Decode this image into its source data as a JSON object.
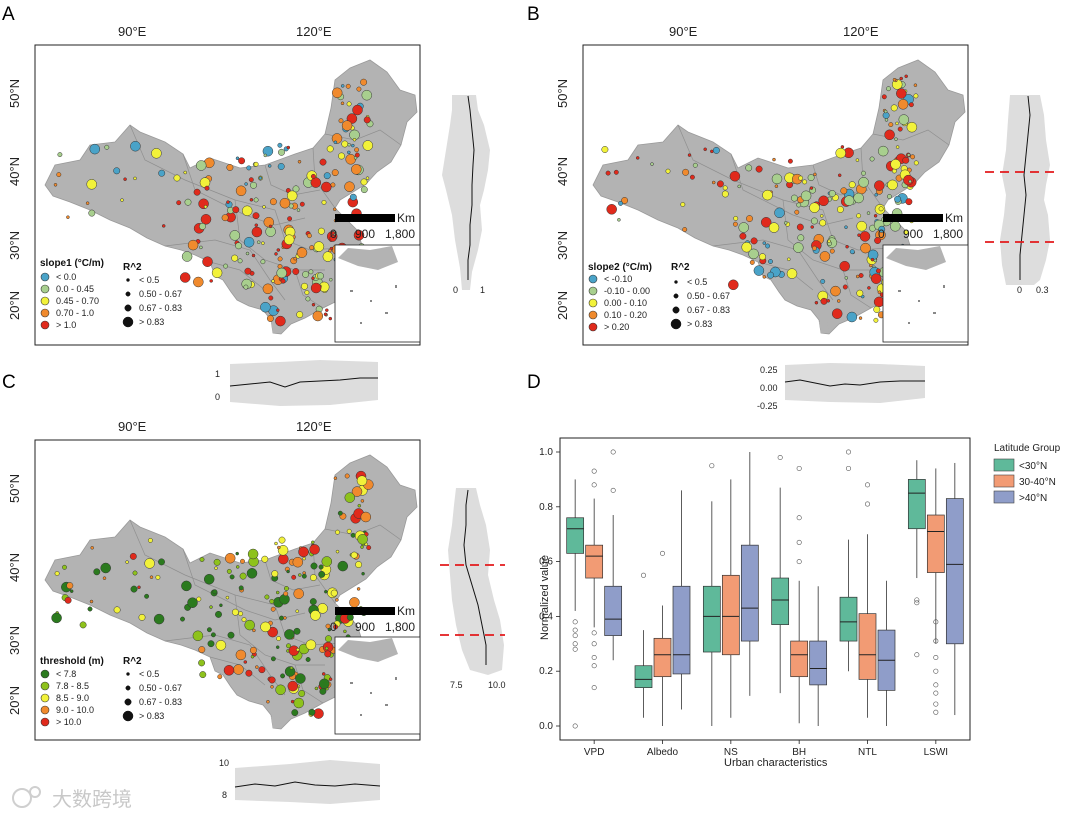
{
  "panels": {
    "A": {
      "letter": "A"
    },
    "B": {
      "letter": "B"
    },
    "C": {
      "letter": "C"
    },
    "D": {
      "letter": "D"
    }
  },
  "map": {
    "lon_labels": [
      "90°E",
      "120°E"
    ],
    "lat_labels": [
      "50°N",
      "40°N",
      "30°N",
      "20°N"
    ],
    "scalebar": {
      "unit": "Km",
      "ticks": [
        "0",
        "900",
        "1,800"
      ]
    },
    "colors": {
      "land": "#b3b3b3",
      "border": "#8f8f8f"
    }
  },
  "legends": {
    "A": {
      "title": "slope1 (°C/m)",
      "classes": [
        "< 0.0",
        "0.0 - 0.45",
        "0.45 - 0.70",
        "0.70 - 1.0",
        "> 1.0"
      ]
    },
    "B": {
      "title": "slope2 (°C/m)",
      "classes": [
        "< -0.10",
        "-0.10 - 0.00",
        "0.00 - 0.10",
        "0.10 - 0.20",
        "> 0.20"
      ]
    },
    "C": {
      "title": "threshold (m)",
      "classes": [
        "< 7.8",
        "7.8 - 8.5",
        "8.5 - 9.0",
        "9.0 - 10.0",
        "> 10.0"
      ]
    },
    "r2": {
      "title": "R^2",
      "classes": [
        "< 0.5",
        "0.50 - 0.67",
        "0.67 - 0.83",
        "> 0.83"
      ]
    },
    "colorsA": [
      "#4aa3c8",
      "#a8cf8e",
      "#f2f23a",
      "#f08a2d",
      "#e02a1c"
    ],
    "colorsB": [
      "#4aa3c8",
      "#a8cf8e",
      "#f2f23a",
      "#f08a2d",
      "#e02a1c"
    ],
    "colorsC": [
      "#2b7a1e",
      "#8ec21c",
      "#f2f23a",
      "#f08a2d",
      "#e02a1c"
    ]
  },
  "profiles": {
    "A_lat": {
      "ticks": [
        "0",
        "1"
      ]
    },
    "B_lat": {
      "ticks": [
        "0",
        "0.3"
      ]
    },
    "C_lat": {
      "ticks": [
        "7.5",
        "10.0"
      ]
    },
    "A_lon": {
      "ticks": [
        "1",
        "0"
      ]
    },
    "B_lon": {
      "ticks": [
        "0.25",
        "0.00",
        "-0.25"
      ]
    },
    "C_lon": {
      "ticks": [
        "10",
        "8"
      ]
    }
  },
  "watermark": "大数跨境",
  "chart_data": {
    "type": "box",
    "xlabel": "Urban characteristics",
    "ylabel": "Normalized value",
    "ylim": [
      0,
      1.0
    ],
    "yticks": [
      "0.0",
      "0.2",
      "0.4",
      "0.6",
      "0.8",
      "1.0"
    ],
    "categories": [
      "VPD",
      "Albedo",
      "NS",
      "BH",
      "NTL",
      "LSWI"
    ],
    "legend_title": "Latitude Group",
    "series": [
      {
        "name": "<30°N",
        "color": "#5fb99a",
        "boxes": [
          {
            "whislo": 0.42,
            "q1": 0.63,
            "med": 0.72,
            "q3": 0.76,
            "whishi": 0.9,
            "fliers": [
              0.38,
              0.35,
              0.33,
              0.3,
              0.28,
              0.0
            ]
          },
          {
            "whislo": 0.03,
            "q1": 0.14,
            "med": 0.17,
            "q3": 0.22,
            "whishi": 0.35,
            "fliers": [
              0.55
            ]
          },
          {
            "whislo": 0.0,
            "q1": 0.27,
            "med": 0.4,
            "q3": 0.51,
            "whishi": 0.82,
            "fliers": [
              0.95
            ]
          },
          {
            "whislo": 0.12,
            "q1": 0.37,
            "med": 0.46,
            "q3": 0.54,
            "whishi": 0.87,
            "fliers": [
              0.98
            ]
          },
          {
            "whislo": 0.2,
            "q1": 0.31,
            "med": 0.38,
            "q3": 0.47,
            "whishi": 0.68,
            "fliers": [
              1.0,
              0.94
            ]
          },
          {
            "whislo": 0.54,
            "q1": 0.72,
            "med": 0.85,
            "q3": 0.9,
            "whishi": 0.97,
            "fliers": [
              0.46,
              0.45,
              0.26
            ]
          }
        ]
      },
      {
        "name": "30-40°N",
        "color": "#f29b74",
        "boxes": [
          {
            "whislo": 0.36,
            "q1": 0.54,
            "med": 0.62,
            "q3": 0.66,
            "whishi": 0.83,
            "fliers": [
              0.93,
              0.88,
              0.34,
              0.3,
              0.25,
              0.22,
              0.14
            ]
          },
          {
            "whislo": 0.0,
            "q1": 0.18,
            "med": 0.26,
            "q3": 0.32,
            "whishi": 0.44,
            "fliers": [
              0.63
            ]
          },
          {
            "whislo": 0.03,
            "q1": 0.26,
            "med": 0.4,
            "q3": 0.55,
            "whishi": 0.9,
            "fliers": []
          },
          {
            "whislo": 0.01,
            "q1": 0.18,
            "med": 0.26,
            "q3": 0.31,
            "whishi": 0.53,
            "fliers": [
              0.94,
              0.76,
              0.67,
              0.6
            ]
          },
          {
            "whislo": 0.03,
            "q1": 0.17,
            "med": 0.26,
            "q3": 0.41,
            "whishi": 0.7,
            "fliers": [
              0.88,
              0.81
            ]
          },
          {
            "whislo": 0.3,
            "q1": 0.56,
            "med": 0.71,
            "q3": 0.77,
            "whishi": 0.94,
            "fliers": [
              0.38,
              0.31,
              0.25,
              0.2,
              0.15,
              0.12,
              0.08,
              0.05
            ]
          }
        ]
      },
      {
        "name": ">40°N",
        "color": "#8f9dc9",
        "boxes": [
          {
            "whislo": 0.24,
            "q1": 0.33,
            "med": 0.39,
            "q3": 0.51,
            "whishi": 0.77,
            "fliers": [
              0.86,
              1.0
            ]
          },
          {
            "whislo": 0.06,
            "q1": 0.19,
            "med": 0.26,
            "q3": 0.51,
            "whishi": 0.86,
            "fliers": []
          },
          {
            "whislo": 0.11,
            "q1": 0.31,
            "med": 0.43,
            "q3": 0.66,
            "whishi": 1.0,
            "fliers": []
          },
          {
            "whislo": 0.0,
            "q1": 0.15,
            "med": 0.21,
            "q3": 0.31,
            "whishi": 0.51,
            "fliers": []
          },
          {
            "whislo": 0.0,
            "q1": 0.13,
            "med": 0.24,
            "q3": 0.35,
            "whishi": 0.53,
            "fliers": []
          },
          {
            "whislo": 0.04,
            "q1": 0.3,
            "med": 0.59,
            "q3": 0.83,
            "whishi": 0.96,
            "fliers": []
          }
        ]
      }
    ]
  }
}
